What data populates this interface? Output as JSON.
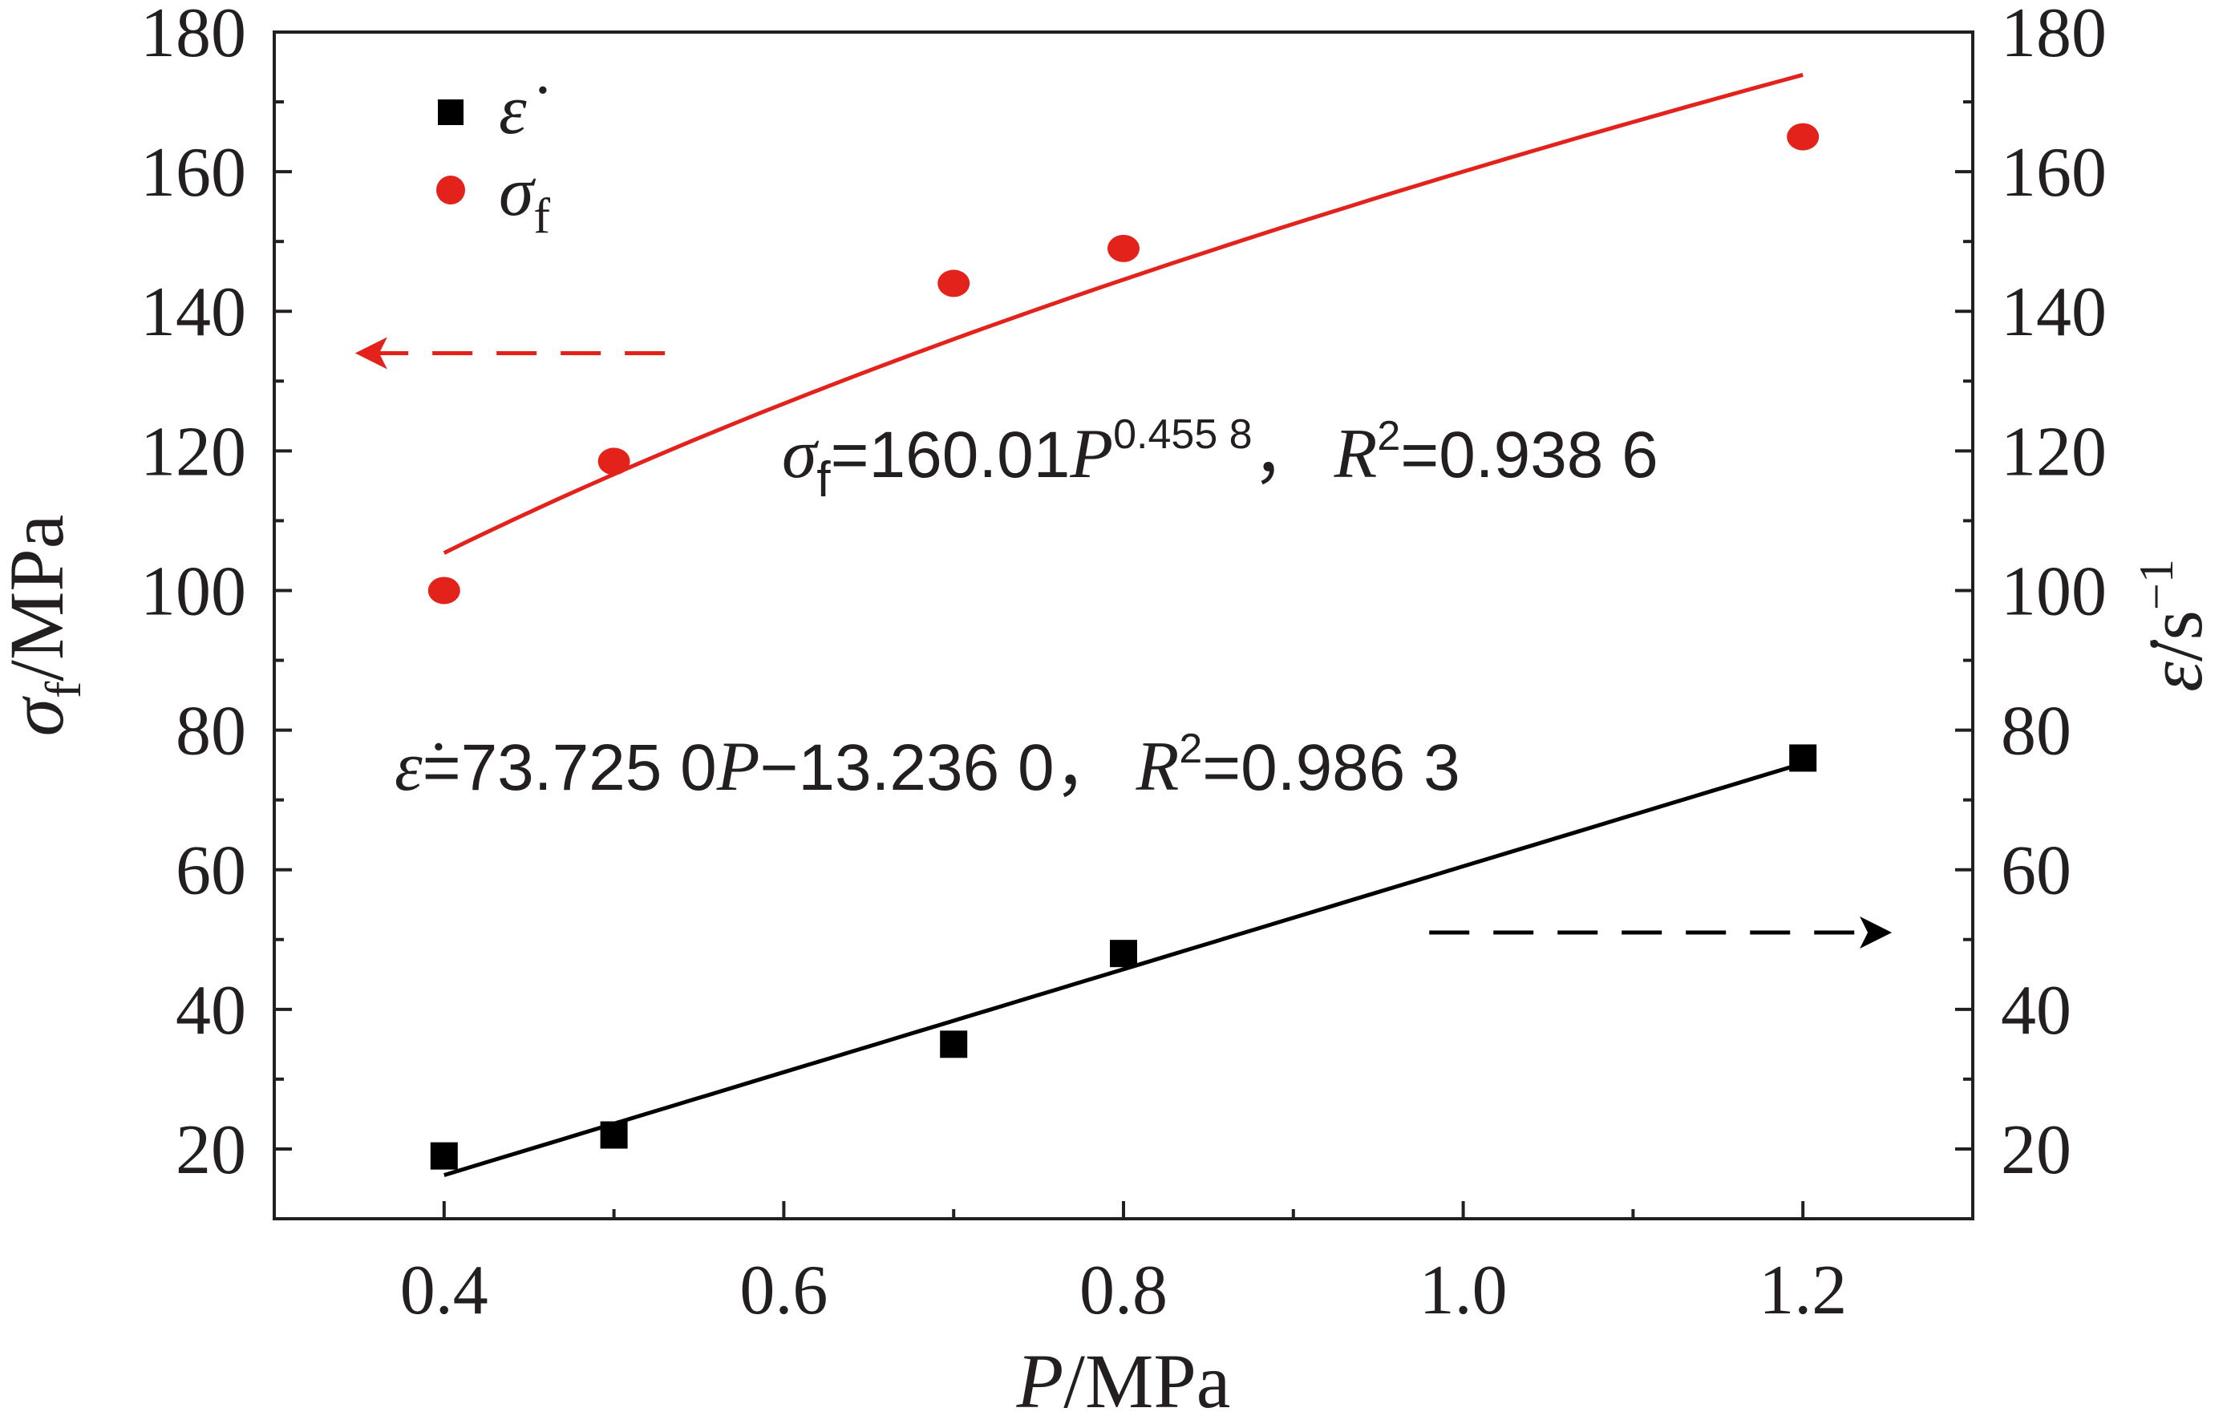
{
  "chart_data": {
    "type": "scatter",
    "title": "",
    "x_axis": {
      "label_var": "P",
      "label_unit": "/MPa",
      "ticks": [
        0.4,
        0.6,
        0.8,
        1.0,
        1.2
      ],
      "tick_labels": [
        "0.4",
        "0.6",
        "0.8",
        "1.0",
        "1.2"
      ],
      "range": [
        0.3,
        1.3
      ]
    },
    "y_left": {
      "label_var": "σ",
      "label_sub": "f",
      "label_unit": "/MPa",
      "ticks": [
        20,
        40,
        60,
        80,
        100,
        120,
        140,
        160,
        180
      ],
      "tick_labels": [
        "20",
        "40",
        "60",
        "80",
        "100",
        "120",
        "140",
        "160",
        "180"
      ],
      "range": [
        10,
        180
      ]
    },
    "y_right": {
      "label_var": "ε̇",
      "label_unit": "/s",
      "label_sup": "−1",
      "ticks": [
        20,
        40,
        60,
        80,
        100,
        120,
        140,
        160,
        180
      ],
      "tick_labels": [
        "20",
        "40",
        "60",
        "80",
        "100",
        "120",
        "140",
        "160",
        "180"
      ],
      "range": [
        10,
        180
      ]
    },
    "series": [
      {
        "name": "ε̇",
        "axis": "right",
        "marker": "square",
        "color": "#000000",
        "x": [
          0.4,
          0.5,
          0.7,
          0.8,
          1.2
        ],
        "y": [
          19,
          22,
          35,
          48,
          76
        ]
      },
      {
        "name": "σ",
        "name_sub": "f",
        "axis": "left",
        "marker": "circle",
        "color": "#e3221b",
        "x": [
          0.4,
          0.5,
          0.7,
          0.8,
          1.2
        ],
        "y": [
          100,
          118.5,
          144,
          149,
          165
        ]
      }
    ],
    "fits": [
      {
        "series": "σf",
        "kind": "power",
        "a": 160.01,
        "b": 0.4558,
        "x_range": [
          0.4,
          1.2
        ],
        "color": "#e3221b"
      },
      {
        "series": "ε̇",
        "kind": "linear",
        "slope": 73.725,
        "intercept": -13.236,
        "x_range": [
          0.4,
          1.2
        ],
        "color": "#000000"
      }
    ],
    "annotations": {
      "eq_sigma": {
        "var": "σ",
        "sub": "f",
        "body": "=160.01",
        "pvar": "P",
        "exp": "0.455 8",
        "sep": "，",
        "rvar": "R",
        "rexp": "2",
        "rval": "=0.938 6"
      },
      "eq_eps": {
        "var": "ε̇",
        "body": "=73.725 0",
        "pvar": "P",
        "rest": "−13.236 0，",
        "rvar": "R",
        "rexp": "2",
        "rval": "=0.986 3"
      },
      "arrow_left": {
        "x_from": 0.53,
        "x_to": 0.35,
        "y": 134,
        "axis": "left",
        "color": "#e3221b"
      },
      "arrow_right": {
        "x_from": 0.98,
        "x_to": 1.25,
        "y": 51,
        "axis": "right",
        "color": "#000000"
      }
    },
    "legend": {
      "position": "top-left"
    },
    "grid": false
  }
}
